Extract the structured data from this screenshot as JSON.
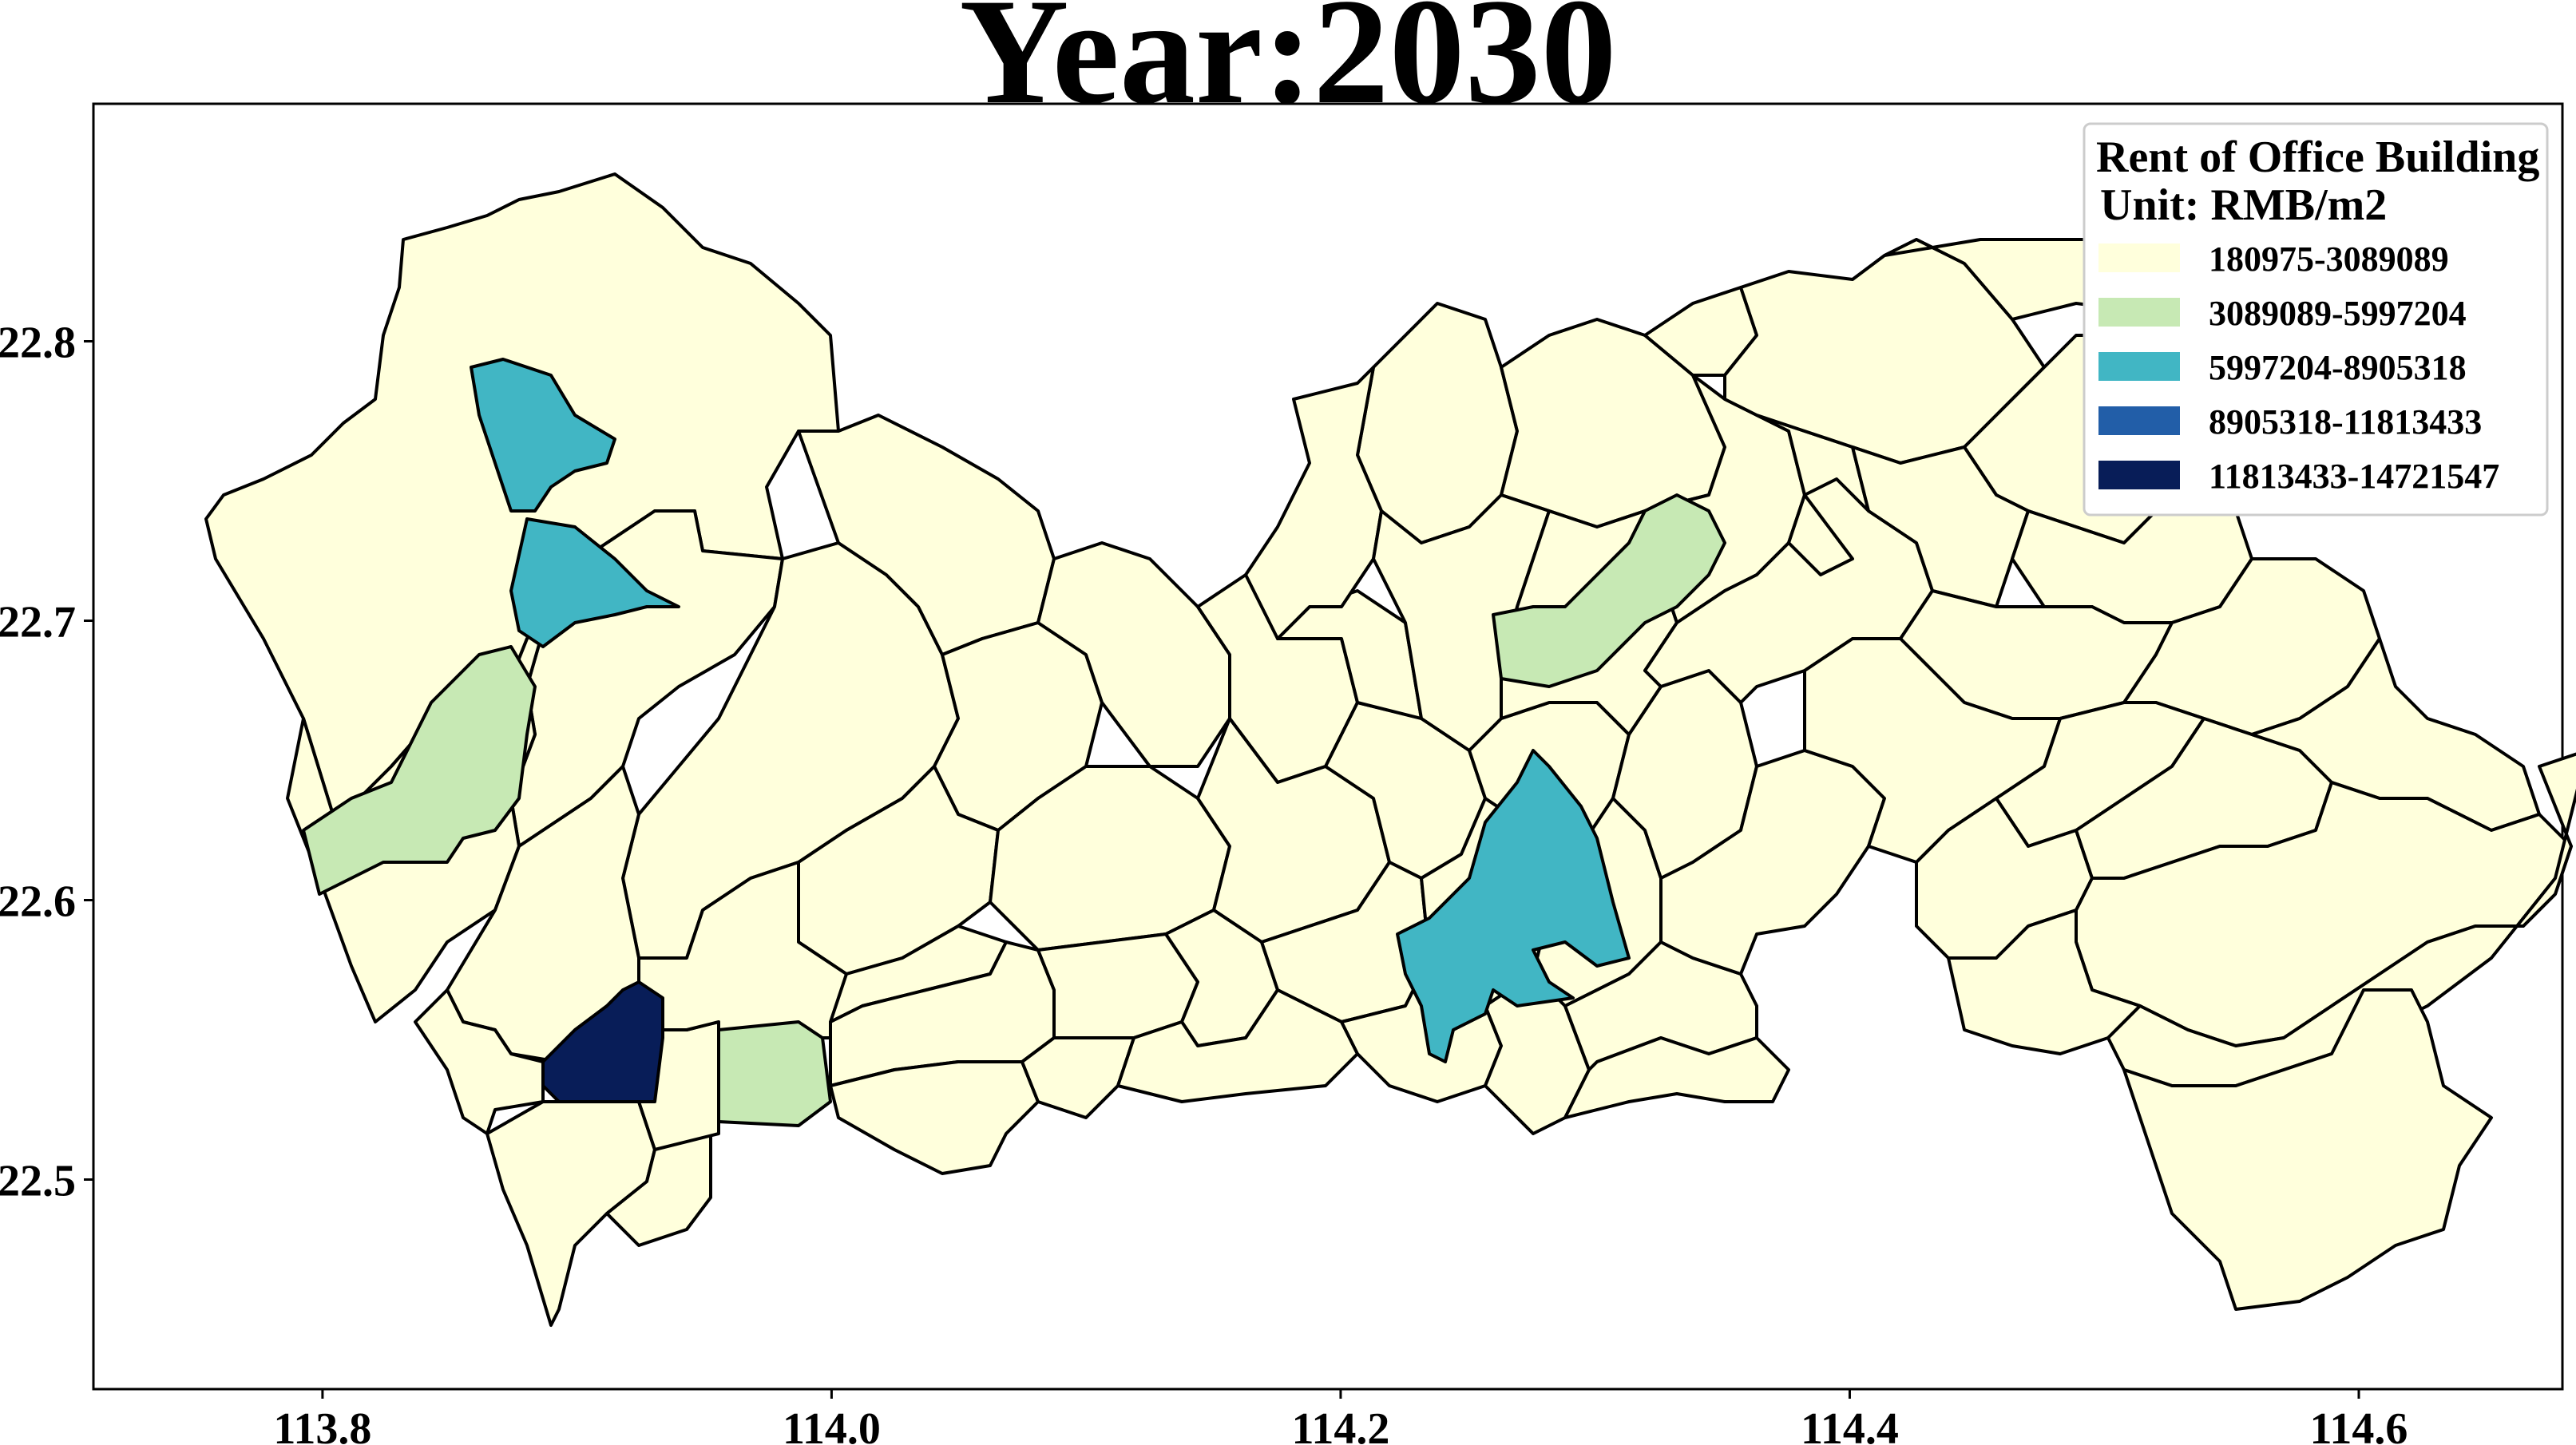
{
  "title": "Year:2030",
  "axes": {
    "x_ticks": [
      "113.8",
      "114.0",
      "114.2",
      "114.4",
      "114.6"
    ],
    "y_ticks": [
      "22.8",
      "22.7",
      "22.6",
      "22.5"
    ],
    "x_tick_values": [
      113.8,
      114.0,
      114.2,
      114.4,
      114.6
    ],
    "y_tick_values": [
      22.8,
      22.7,
      22.6,
      22.5
    ],
    "xlim": [
      113.71,
      114.68
    ],
    "ylim": [
      22.425,
      22.885
    ]
  },
  "legend": {
    "title_line1": "Rent of Office Building",
    "title_line2": "Unit: RMB/m2",
    "placement": "top-right",
    "entries": [
      {
        "label": "180975-3089089",
        "color": "#ffffdc"
      },
      {
        "label": "3089089-5997204",
        "color": "#c7e9b4"
      },
      {
        "label": "5997204-8905318",
        "color": "#41b6c4"
      },
      {
        "label": "8905318-11813433",
        "color": "#225ea8"
      },
      {
        "label": "11813433-14721547",
        "color": "#081d58"
      }
    ]
  },
  "colors": {
    "background": "#ffffff",
    "border": "#000000"
  }
}
